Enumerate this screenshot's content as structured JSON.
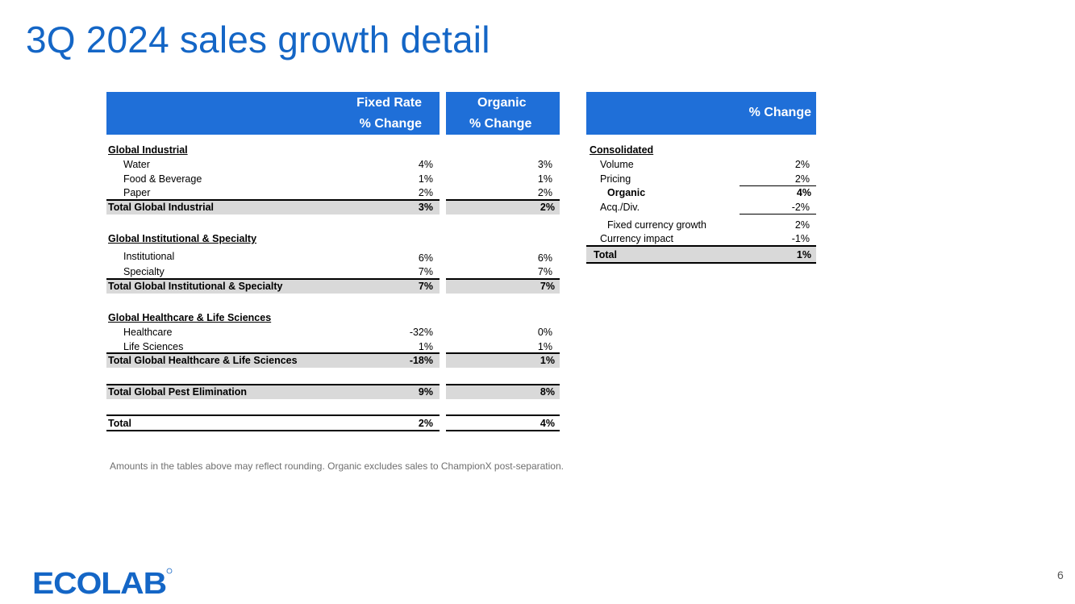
{
  "title": "3Q 2024 sales growth detail",
  "left_table": {
    "header_fixed_line1": "Fixed Rate",
    "header_fixed_line2": "% Change",
    "header_organic_line1": "Organic",
    "header_organic_line2": "% Change",
    "sections": [
      {
        "name": "Global Industrial",
        "rows": [
          {
            "label": "Water",
            "fixed": "4%",
            "organic": "3%"
          },
          {
            "label": "Food & Beverage",
            "fixed": "1%",
            "organic": "1%"
          },
          {
            "label": "Paper",
            "fixed": "2%",
            "organic": "2%"
          }
        ],
        "total": {
          "label": "Total Global Industrial",
          "fixed": "3%",
          "organic": "2%"
        }
      },
      {
        "name": "Global Institutional & Specialty",
        "rows": [
          {
            "label": "Institutional",
            "fixed": "6%",
            "organic": "6%"
          },
          {
            "label": "Specialty",
            "fixed": "7%",
            "organic": "7%"
          }
        ],
        "total": {
          "label": "Total Global Institutional & Specialty",
          "fixed": "7%",
          "organic": "7%"
        }
      },
      {
        "name": "Global Healthcare & Life Sciences",
        "rows": [
          {
            "label": "Healthcare",
            "fixed": "-32%",
            "organic": "0%"
          },
          {
            "label": "Life Sciences",
            "fixed": "1%",
            "organic": "1%"
          }
        ],
        "total": {
          "label": "Total Global Healthcare & Life Sciences",
          "fixed": "-18%",
          "organic": "1%"
        }
      }
    ],
    "pest": {
      "label": "Total Global Pest Elimination",
      "fixed": "9%",
      "organic": "8%"
    },
    "grand_total": {
      "label": "Total",
      "fixed": "2%",
      "organic": "4%"
    }
  },
  "right_table": {
    "header": "% Change",
    "section": "Consolidated",
    "volume": {
      "label": "Volume",
      "value": "2%"
    },
    "pricing": {
      "label": "Pricing",
      "value": "2%"
    },
    "organic": {
      "label": "Organic",
      "value": "4%"
    },
    "acq": {
      "label": "Acq./Div.",
      "value": "-2%"
    },
    "fixed_growth": {
      "label": "Fixed currency growth",
      "value": "2%"
    },
    "currency": {
      "label": "Currency impact",
      "value": "-1%"
    },
    "total": {
      "label": "Total",
      "value": "1%"
    }
  },
  "footnote": "Amounts in the tables above may reflect rounding.  Organic excludes sales to ChampionX post-separation.",
  "logo_text": "ECOLAB",
  "page_number": "6",
  "colors": {
    "title": "#1466c6",
    "header_bg": "#1f6fd8",
    "total_bg": "#d9d9d9",
    "logo": "#1466c6"
  }
}
